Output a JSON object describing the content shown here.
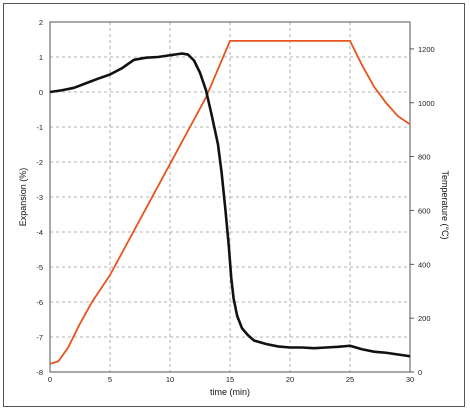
{
  "chart_data": {
    "type": "line",
    "title": "",
    "xlabel": "time (min)",
    "ylabel_left": "Expansion (%)",
    "ylabel_right": "Temperature (°C)",
    "xlim": [
      0,
      30
    ],
    "ylim_left": [
      -8,
      2
    ],
    "ylim_right": [
      0,
      1300
    ],
    "x_ticks": [
      "0",
      "5",
      "10",
      "15",
      "20",
      "25",
      "30"
    ],
    "y_ticks_left": [
      "-8",
      "-7",
      "-6",
      "-5",
      "-4",
      "-3",
      "-2",
      "-1",
      "0",
      "1",
      "2"
    ],
    "y_ticks_right": [
      "0",
      "200",
      "400",
      "600",
      "800",
      "1000",
      "1200"
    ],
    "grid": true,
    "colors": {
      "expansion": "#111111",
      "temperature": "#e8541e",
      "grid": "#9a9a9a",
      "frame": "#555555"
    },
    "series": [
      {
        "axis": "left",
        "x": [
          0,
          1,
          2,
          3,
          4,
          5,
          6,
          7,
          8,
          9,
          10,
          11,
          11.5,
          12,
          12.5,
          13,
          13.5,
          14,
          14.3,
          14.6,
          14.9,
          15.1,
          15.3,
          15.6,
          16,
          16.5,
          17,
          18,
          19,
          20,
          21,
          22,
          23,
          24,
          25,
          26,
          27,
          28,
          29,
          30
        ],
        "y": [
          0,
          0.05,
          0.12,
          0.25,
          0.38,
          0.5,
          0.68,
          0.92,
          0.98,
          1.0,
          1.05,
          1.1,
          1.07,
          0.9,
          0.55,
          0.05,
          -0.7,
          -1.5,
          -2.3,
          -3.3,
          -4.4,
          -5.3,
          -5.9,
          -6.4,
          -6.75,
          -6.95,
          -7.1,
          -7.2,
          -7.27,
          -7.3,
          -7.3,
          -7.32,
          -7.3,
          -7.28,
          -7.25,
          -7.35,
          -7.42,
          -7.45,
          -7.5,
          -7.55
        ]
      },
      {
        "axis": "right",
        "x": [
          0,
          0.7,
          1.5,
          2.5,
          3.5,
          5,
          7,
          9,
          11,
          13,
          15,
          25,
          26,
          27,
          28,
          29,
          30
        ],
        "y": [
          30,
          40,
          90,
          180,
          260,
          360,
          525,
          690,
          855,
          1020,
          1230,
          1230,
          1140,
          1060,
          1000,
          950,
          920
        ]
      }
    ]
  }
}
